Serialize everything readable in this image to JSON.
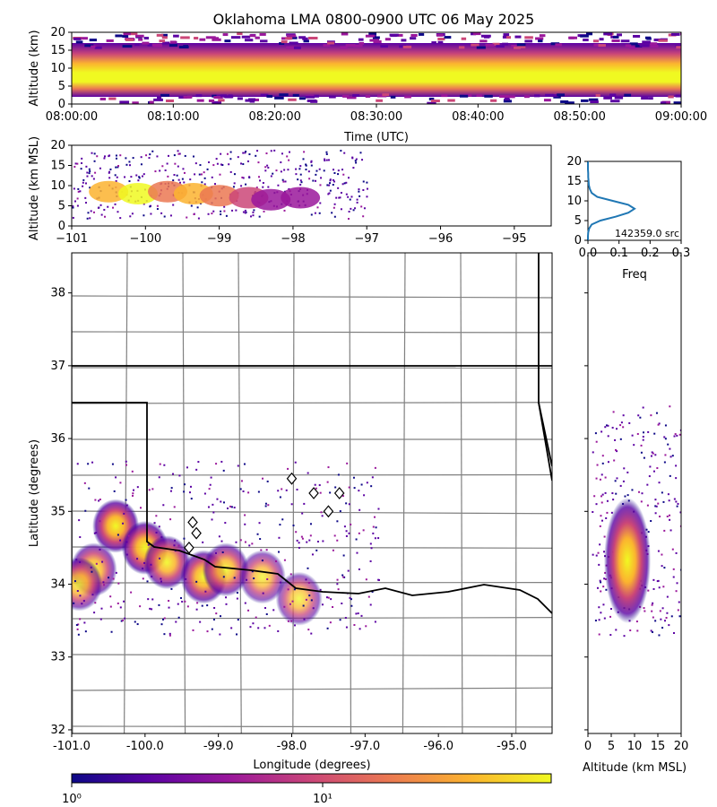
{
  "title": "Oklahoma LMA 0800-0900 UTC 06 May 2025",
  "colors": {
    "colormap": [
      "#0d0887",
      "#5b02a3",
      "#9a179b",
      "#cb4678",
      "#eb7852",
      "#fbb32f",
      "#f0f921"
    ],
    "state_border": "#000000",
    "county_border": "#808080",
    "station_marker": "#ffffff",
    "histogram_line": "#1f77b4"
  },
  "chart_data": [
    {
      "id": "time_altitude",
      "type": "heatmap",
      "ylabel": "Altitude (km)",
      "xlabel": "Time (UTC)",
      "xticks": [
        "08:00:00",
        "08:10:00",
        "08:20:00",
        "08:30:00",
        "08:40:00",
        "08:50:00",
        "09:00:00"
      ],
      "xlim": [
        "08:00:00",
        "09:00:00"
      ],
      "yticks": [
        "0",
        "5",
        "10",
        "15",
        "20"
      ],
      "ylim": [
        0,
        20
      ],
      "core_altitude_km": 8.5,
      "core_band_km": [
        5,
        12
      ],
      "scatter_band_km": [
        1,
        20
      ]
    },
    {
      "id": "lon_altitude",
      "type": "heatmap",
      "ylabel": "Altitude (km MSL)",
      "xticks": [
        "−101",
        "−100",
        "−99",
        "−98",
        "−97",
        "−96",
        "−95"
      ],
      "xlim": [
        -101,
        -94.5
      ],
      "yticks": [
        "0",
        "5",
        "10",
        "15",
        "20"
      ],
      "ylim": [
        0,
        20
      ],
      "cells": [
        {
          "lon": -100.5,
          "alt": 8.5,
          "intensity": 0.8
        },
        {
          "lon": -100.1,
          "alt": 8.0,
          "intensity": 1.0
        },
        {
          "lon": -99.7,
          "alt": 8.5,
          "intensity": 0.7
        },
        {
          "lon": -99.35,
          "alt": 8.0,
          "intensity": 0.85
        },
        {
          "lon": -99.0,
          "alt": 7.5,
          "intensity": 0.6
        },
        {
          "lon": -98.6,
          "alt": 7.0,
          "intensity": 0.45
        },
        {
          "lon": -98.3,
          "alt": 6.5,
          "intensity": 0.4
        },
        {
          "lon": -97.9,
          "alt": 7.0,
          "intensity": 0.3
        }
      ]
    },
    {
      "id": "altitude_histogram",
      "type": "line",
      "xlabel": "Freq",
      "xticks": [
        "0.0",
        "0.1",
        "0.2",
        "0.3"
      ],
      "xlim": [
        0,
        0.3
      ],
      "yticks": [
        "0",
        "5",
        "10",
        "15",
        "20"
      ],
      "ylim": [
        0,
        20
      ],
      "source_count_label": "142359.0 src",
      "altitude_km": [
        0,
        1,
        2,
        3,
        4,
        5,
        6,
        7,
        8,
        9,
        10,
        11,
        12,
        13,
        14,
        15,
        16,
        17,
        18,
        19,
        20
      ],
      "freq": [
        0,
        0,
        0.001,
        0.004,
        0.012,
        0.04,
        0.09,
        0.13,
        0.15,
        0.13,
        0.08,
        0.03,
        0.012,
        0.006,
        0.003,
        0.002,
        0.001,
        0.001,
        0,
        0,
        0
      ]
    },
    {
      "id": "plan_view",
      "type": "heatmap",
      "xlabel": "Longitude (degrees)",
      "ylabel": "Latitude (degrees)",
      "xticks": [
        "-101.0",
        "-100.0",
        "-99.0",
        "-98.0",
        "-97.0",
        "-96.0",
        "-95.0"
      ],
      "xlim": [
        -101.0,
        -94.45
      ],
      "yticks": [
        "32",
        "33",
        "34",
        "35",
        "36",
        "37",
        "38"
      ],
      "ylim": [
        31.95,
        38.55
      ],
      "cells": [
        {
          "lon": -100.4,
          "lat": 34.8,
          "intensity": 0.95
        },
        {
          "lon": -100.0,
          "lat": 34.5,
          "intensity": 0.9
        },
        {
          "lon": -100.7,
          "lat": 34.2,
          "intensity": 0.6
        },
        {
          "lon": -99.7,
          "lat": 34.3,
          "intensity": 0.7
        },
        {
          "lon": -99.2,
          "lat": 34.1,
          "intensity": 0.8
        },
        {
          "lon": -98.9,
          "lat": 34.2,
          "intensity": 0.6
        },
        {
          "lon": -100.9,
          "lat": 34.0,
          "intensity": 0.5
        },
        {
          "lon": -98.4,
          "lat": 34.1,
          "intensity": 0.4
        },
        {
          "lon": -97.9,
          "lat": 33.8,
          "intensity": 0.35
        }
      ],
      "stations": [
        {
          "lon": -99.35,
          "lat": 34.85
        },
        {
          "lon": -99.3,
          "lat": 34.7
        },
        {
          "lon": -99.4,
          "lat": 34.5
        },
        {
          "lon": -98.0,
          "lat": 35.45
        },
        {
          "lon": -97.7,
          "lat": 35.25
        },
        {
          "lon": -97.35,
          "lat": 35.25
        },
        {
          "lon": -97.5,
          "lat": 35.0
        }
      ]
    },
    {
      "id": "altitude_lat",
      "type": "heatmap",
      "xlabel": "Altitude (km MSL)",
      "xticks": [
        "0",
        "5",
        "10",
        "15",
        "20"
      ],
      "xlim": [
        0,
        20
      ],
      "core_lat": [
        33.8,
        35.2
      ],
      "core_alt_km": [
        6,
        11
      ]
    }
  ],
  "colorbar": {
    "tick_1": "10⁰",
    "tick_2": "10¹"
  }
}
